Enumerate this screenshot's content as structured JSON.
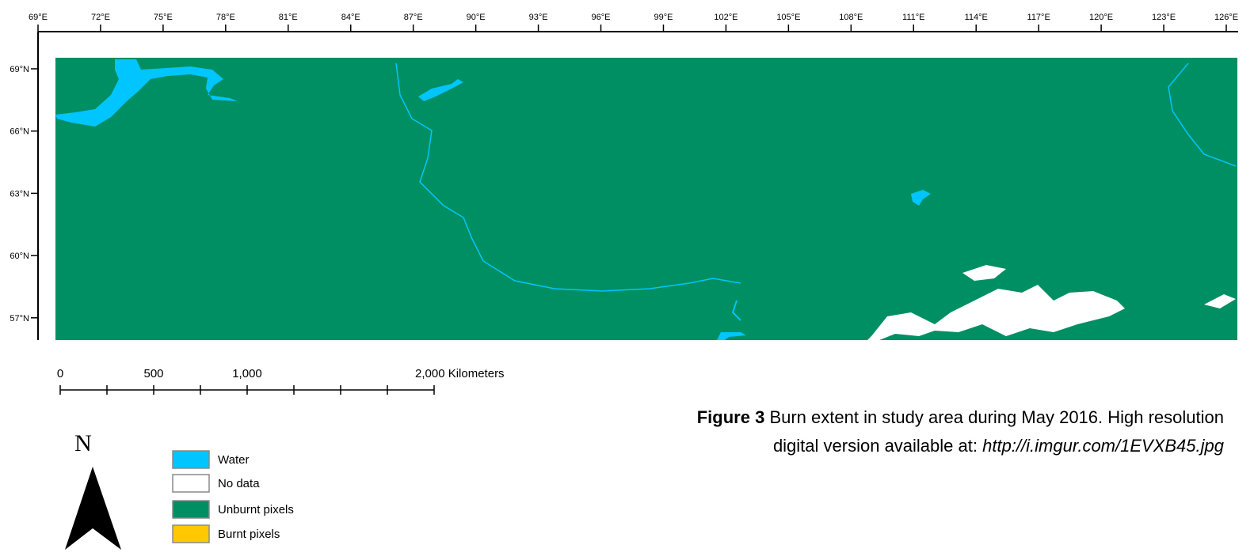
{
  "map": {
    "lon_ticks": [
      "69°E",
      "72°E",
      "75°E",
      "78°E",
      "81°E",
      "84°E",
      "87°E",
      "90°E",
      "93°E",
      "96°E",
      "99°E",
      "102°E",
      "105°E",
      "108°E",
      "111°E",
      "114°E",
      "117°E",
      "120°E",
      "123°E",
      "126°E"
    ],
    "lat_ticks": [
      "69°N",
      "66°N",
      "63°N",
      "60°N",
      "57°N"
    ],
    "scale_bar": {
      "labels": [
        "0",
        "500",
        "1,000",
        "2,000 Kilometers"
      ]
    },
    "north_arrow": "N",
    "legend": [
      {
        "label": "Water",
        "color": "#00c5ff"
      },
      {
        "label": "No data",
        "color": "#ffffff"
      },
      {
        "label": "Unburnt pixels",
        "color": "#008f63"
      },
      {
        "label": "Burnt pixels",
        "color": "#ffc800"
      }
    ]
  },
  "caption": {
    "label": "Figure 3",
    "text": [
      "Burn extent in study area during May 2016. High resolution",
      "digital version available at:"
    ],
    "url": "http://i.imgur.com/1EVXB45.jpg"
  }
}
